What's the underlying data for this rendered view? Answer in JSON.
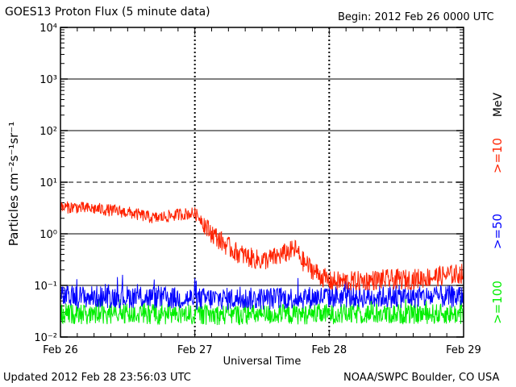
{
  "header": {
    "title": "GOES13 Proton Flux (5 minute data)",
    "begin": "Begin: 2012 Feb 26 0000 UTC"
  },
  "footer": {
    "updated": "Updated 2012 Feb 28 23:56:03 UTC",
    "credit": "NOAA/SWPC Boulder, CO USA"
  },
  "colors": {
    "ge10": "#ff2200",
    "ge50": "#0000ff",
    "ge100": "#00ee00",
    "axis": "#000000"
  },
  "chart_data": {
    "type": "line",
    "title": "GOES13 Proton Flux (5 minute data)",
    "xlabel": "Universal Time",
    "ylabel": "Particles cm⁻²s⁻¹sr⁻¹",
    "yscale": "log",
    "ylim": [
      0.01,
      10000
    ],
    "xlim": [
      0,
      3
    ],
    "x_tick_labels": [
      "Feb 26",
      "Feb 27",
      "Feb 28",
      "Feb 29"
    ],
    "y_tick_labels": [
      "10⁻²",
      "10⁻¹",
      "10⁰",
      "10¹",
      "10²",
      "10³",
      "10⁴"
    ],
    "right_unit": "MeV",
    "grid": true,
    "series": [
      {
        "name": ">=10",
        "color": "#ff2200",
        "x": [
          0,
          0.1,
          0.2,
          0.3,
          0.4,
          0.5,
          0.6,
          0.7,
          0.8,
          0.9,
          1.0,
          1.05,
          1.1,
          1.2,
          1.3,
          1.4,
          1.5,
          1.6,
          1.7,
          1.75,
          1.8,
          1.9,
          2.0,
          2.2,
          2.4,
          2.6,
          2.8,
          2.9,
          3.0
        ],
        "values": [
          3.2,
          3.3,
          3.1,
          3.0,
          2.8,
          2.6,
          2.3,
          2.0,
          2.2,
          2.4,
          2.5,
          1.9,
          1.2,
          0.7,
          0.45,
          0.35,
          0.3,
          0.35,
          0.45,
          0.5,
          0.3,
          0.18,
          0.12,
          0.12,
          0.13,
          0.13,
          0.15,
          0.16,
          0.17
        ]
      },
      {
        "name": ">=50",
        "color": "#0000ff",
        "x": [
          0,
          0.5,
          1.0,
          1.5,
          2.0,
          2.5,
          3.0
        ],
        "values": [
          0.06,
          0.06,
          0.055,
          0.055,
          0.06,
          0.06,
          0.06
        ]
      },
      {
        "name": ">=100",
        "color": "#00ee00",
        "x": [
          0,
          0.5,
          1.0,
          1.5,
          2.0,
          2.5,
          3.0
        ],
        "values": [
          0.028,
          0.028,
          0.027,
          0.027,
          0.028,
          0.028,
          0.028
        ]
      }
    ]
  }
}
